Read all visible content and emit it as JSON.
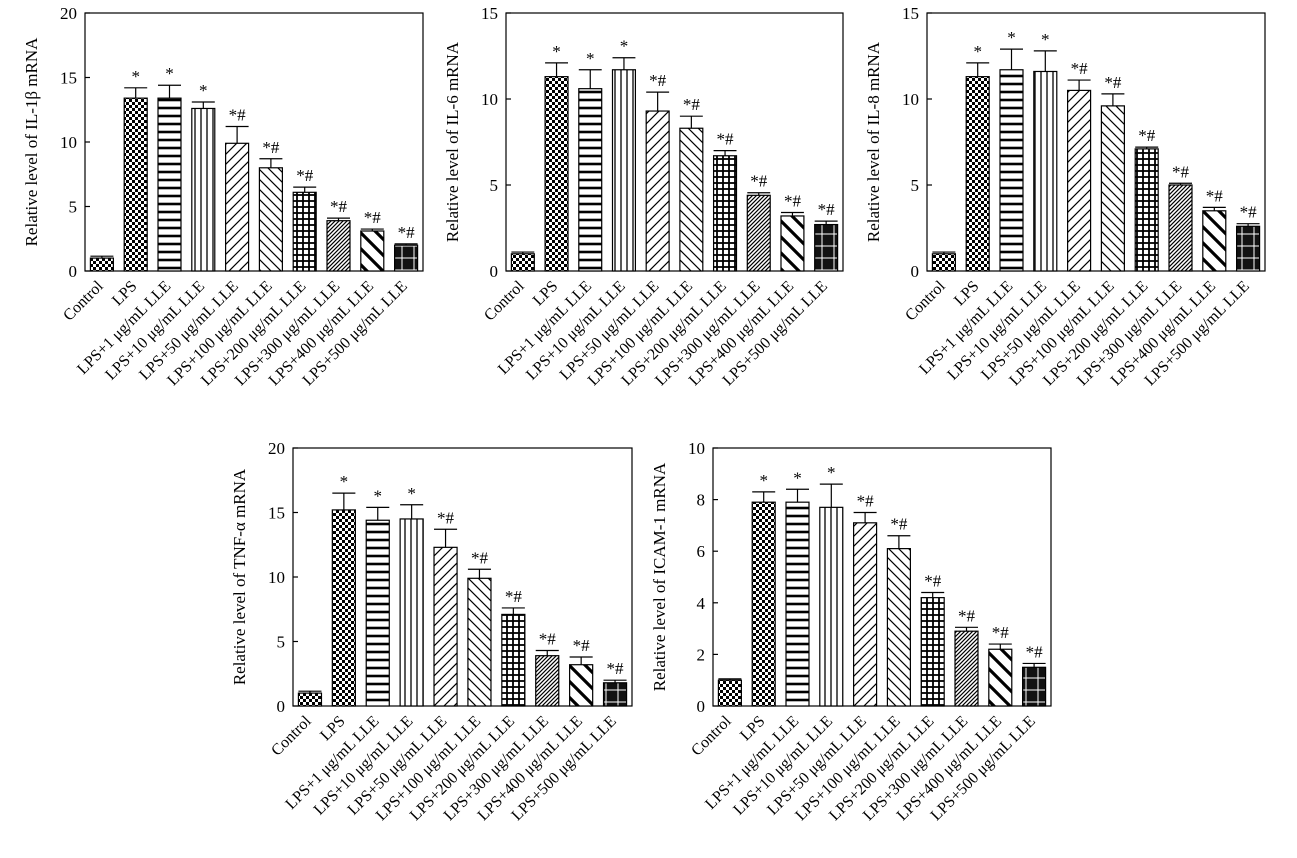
{
  "chart_data": [
    {
      "type": "bar",
      "ylabel": "Relative level of IL-1β mRNA",
      "ylim": [
        0,
        20
      ],
      "yticks": [
        0,
        5,
        10,
        15,
        20
      ],
      "categories": [
        "Control",
        "LPS",
        "LPS+1 μg/mL LLE",
        "LPS+10 μg/mL LLE",
        "LPS+50 μg/mL LLE",
        "LPS+100 μg/mL LLE",
        "LPS+200 μg/mL LLE",
        "LPS+300 μg/mL LLE",
        "LPS+400 μg/mL LLE",
        "LPS+500 μg/mL LLE"
      ],
      "values": [
        1.0,
        13.4,
        13.4,
        12.6,
        9.9,
        8.0,
        6.1,
        3.9,
        3.1,
        2.0
      ],
      "errors": [
        0.15,
        0.8,
        1.0,
        0.5,
        1.3,
        0.7,
        0.4,
        0.2,
        0.15,
        0.1
      ],
      "annotations": [
        "",
        "*",
        "*",
        "*",
        "*#",
        "*#",
        "*#",
        "*#",
        "*#",
        "*#"
      ],
      "grid": false
    },
    {
      "type": "bar",
      "ylabel": "Relative level of IL-6 mRNA",
      "ylim": [
        0,
        15
      ],
      "yticks": [
        0,
        5,
        10,
        15
      ],
      "categories": [
        "Control",
        "LPS",
        "LPS+1 μg/mL LLE",
        "LPS+10 μg/mL LLE",
        "LPS+50 μg/mL LLE",
        "LPS+100 μg/mL LLE",
        "LPS+200 μg/mL LLE",
        "LPS+300 μg/mL LLE",
        "LPS+400 μg/mL LLE",
        "LPS+500 μg/mL LLE"
      ],
      "values": [
        1.0,
        11.3,
        10.6,
        11.7,
        9.3,
        8.3,
        6.7,
        4.4,
        3.2,
        2.7
      ],
      "errors": [
        0.1,
        0.8,
        1.1,
        0.7,
        1.1,
        0.7,
        0.3,
        0.15,
        0.2,
        0.2
      ],
      "annotations": [
        "",
        "*",
        "*",
        "*",
        "*#",
        "*#",
        "*#",
        "*#",
        "*#",
        "*#"
      ],
      "grid": false
    },
    {
      "type": "bar",
      "ylabel": "Relative level of IL-8 mRNA",
      "ylim": [
        0,
        15
      ],
      "yticks": [
        0,
        5,
        10,
        15
      ],
      "categories": [
        "Control",
        "LPS",
        "LPS+1 μg/mL LLE",
        "LPS+10 μg/mL LLE",
        "LPS+50 μg/mL LLE",
        "LPS+100 μg/mL LLE",
        "LPS+200 μg/mL LLE",
        "LPS+300 μg/mL LLE",
        "LPS+400 μg/mL LLE",
        "LPS+500 μg/mL LLE"
      ],
      "values": [
        1.0,
        11.3,
        11.7,
        11.6,
        10.5,
        9.6,
        7.1,
        5.0,
        3.5,
        2.6
      ],
      "errors": [
        0.1,
        0.8,
        1.2,
        1.2,
        0.6,
        0.7,
        0.1,
        0.1,
        0.2,
        0.15
      ],
      "annotations": [
        "",
        "*",
        "*",
        "*",
        "*#",
        "*#",
        "*#",
        "*#",
        "*#",
        "*#"
      ],
      "grid": false
    },
    {
      "type": "bar",
      "ylabel": "Relative level of TNF-α mRNA",
      "ylim": [
        0,
        20
      ],
      "yticks": [
        0,
        5,
        10,
        15,
        20
      ],
      "categories": [
        "Control",
        "LPS",
        "LPS+1 μg/mL LLE",
        "LPS+10 μg/mL LLE",
        "LPS+50 μg/mL LLE",
        "LPS+100 μg/mL LLE",
        "LPS+200 μg/mL LLE",
        "LPS+300 μg/mL LLE",
        "LPS+400 μg/mL LLE",
        "LPS+500 μg/mL LLE"
      ],
      "values": [
        1.0,
        15.2,
        14.4,
        14.5,
        12.3,
        9.9,
        7.1,
        3.9,
        3.2,
        1.8
      ],
      "errors": [
        0.15,
        1.3,
        1.0,
        1.1,
        1.4,
        0.7,
        0.5,
        0.4,
        0.6,
        0.2
      ],
      "annotations": [
        "",
        "*",
        "*",
        "*",
        "*#",
        "*#",
        "*#",
        "*#",
        "*#",
        "*#"
      ],
      "grid": false
    },
    {
      "type": "bar",
      "ylabel": "Relative level of ICAM-1 mRNA",
      "ylim": [
        0,
        10
      ],
      "yticks": [
        0,
        2,
        4,
        6,
        8,
        10
      ],
      "categories": [
        "Control",
        "LPS",
        "LPS+1 μg/mL LLE",
        "LPS+10 μg/mL LLE",
        "LPS+50 μg/mL LLE",
        "LPS+100 μg/mL LLE",
        "LPS+200 μg/mL LLE",
        "LPS+300 μg/mL LLE",
        "LPS+400 μg/mL LLE",
        "LPS+500 μg/mL LLE"
      ],
      "values": [
        1.0,
        7.9,
        7.9,
        7.7,
        7.1,
        6.1,
        4.2,
        2.9,
        2.2,
        1.5
      ],
      "errors": [
        0.05,
        0.4,
        0.5,
        0.9,
        0.4,
        0.5,
        0.2,
        0.15,
        0.2,
        0.15
      ],
      "annotations": [
        "",
        "*",
        "*",
        "*",
        "*#",
        "*#",
        "*#",
        "*#",
        "*#",
        "*#"
      ],
      "grid": false
    }
  ]
}
